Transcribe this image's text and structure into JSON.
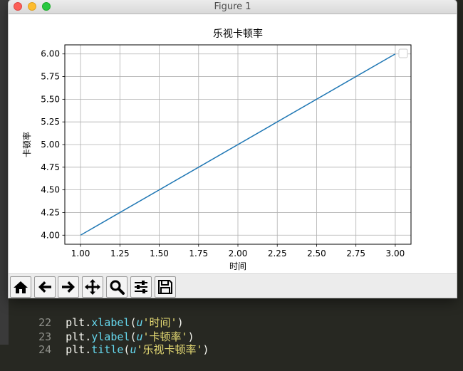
{
  "window": {
    "title": "Figure 1"
  },
  "chart_data": {
    "type": "line",
    "title": "乐视卡顿率",
    "xlabel": "时间",
    "ylabel": "卡顿率",
    "x": [
      1.0,
      3.0
    ],
    "series": [
      {
        "values": [
          4.0,
          6.0
        ],
        "color": "#1f77b4"
      }
    ],
    "xlim": [
      0.9,
      3.1
    ],
    "ylim": [
      3.9,
      6.1
    ],
    "xticks": [
      1.0,
      1.25,
      1.5,
      1.75,
      2.0,
      2.25,
      2.5,
      2.75,
      3.0
    ],
    "yticks": [
      4.0,
      4.25,
      4.5,
      4.75,
      5.0,
      5.25,
      5.5,
      5.75,
      6.0
    ],
    "xtick_labels": [
      "1.00",
      "1.25",
      "1.50",
      "1.75",
      "2.00",
      "2.25",
      "2.50",
      "2.75",
      "3.00"
    ],
    "ytick_labels": [
      "4.00",
      "4.25",
      "4.50",
      "4.75",
      "5.00",
      "5.25",
      "5.50",
      "5.75",
      "6.00"
    ],
    "grid": true,
    "legend": {
      "placement": "top-right",
      "entries": []
    }
  },
  "toolbar": {
    "buttons": [
      {
        "name": "home-button",
        "icon": "home-icon"
      },
      {
        "name": "back-button",
        "icon": "arrow-left-icon"
      },
      {
        "name": "forward-button",
        "icon": "arrow-right-icon"
      },
      {
        "name": "pan-button",
        "icon": "move-icon"
      },
      {
        "name": "zoom-button",
        "icon": "magnifier-icon"
      },
      {
        "name": "configure-subplots-button",
        "icon": "sliders-icon"
      },
      {
        "name": "save-button",
        "icon": "floppy-disk-icon"
      }
    ]
  },
  "editor": {
    "lines": [
      {
        "num": "22",
        "obj": "plt",
        "fn": "xlabel",
        "prefix": "u",
        "str": "'时间'"
      },
      {
        "num": "23",
        "obj": "plt",
        "fn": "ylabel",
        "prefix": "u",
        "str": "'卡顿率'"
      },
      {
        "num": "24",
        "obj": "plt",
        "fn": "title",
        "prefix": "u",
        "str": "'乐视卡顿率'"
      }
    ]
  },
  "colors": {
    "line": "#1f77b4",
    "grid": "#b0b0b0",
    "editor_bg": "#272822"
  }
}
